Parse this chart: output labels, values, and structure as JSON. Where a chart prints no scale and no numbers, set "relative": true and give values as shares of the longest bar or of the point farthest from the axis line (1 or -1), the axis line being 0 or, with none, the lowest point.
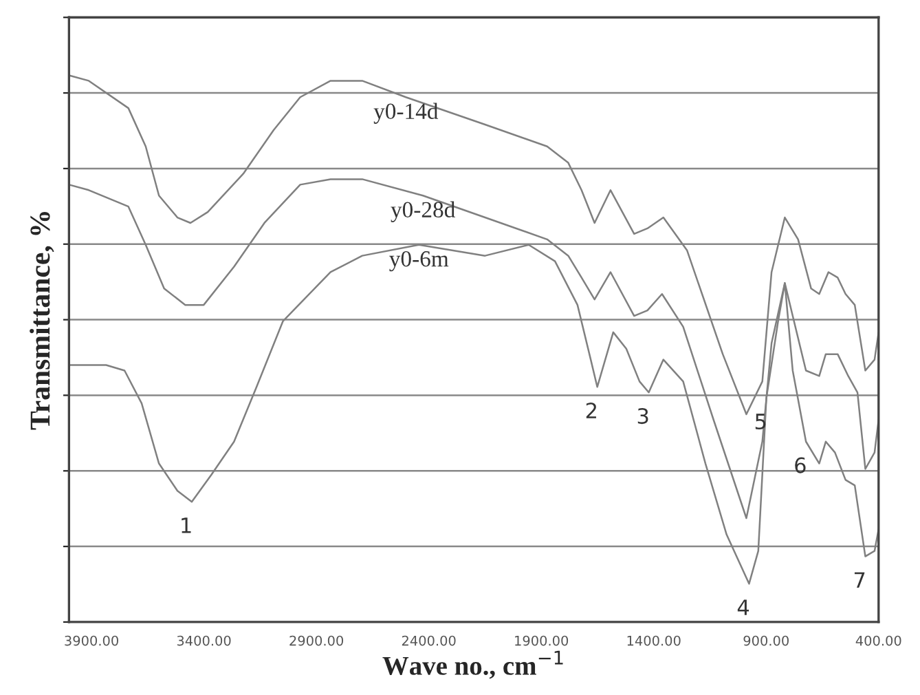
{
  "chart_data": {
    "type": "line",
    "relative": true,
    "xlabel": "Wave no., cm$^{−1}$",
    "ylabel": "Transmittance, %",
    "xlim": [
      4000,
      400
    ],
    "xticks": [
      {
        "value": 3900,
        "label": "3900.00"
      },
      {
        "value": 3400,
        "label": "3400.00"
      },
      {
        "value": 2900,
        "label": "2900.00"
      },
      {
        "value": 2400,
        "label": "2400.00"
      },
      {
        "value": 1900,
        "label": "1900.00"
      },
      {
        "value": 1400,
        "label": "1400.00"
      },
      {
        "value": 900,
        "label": "900.00"
      },
      {
        "value": 400,
        "label": "400.00"
      }
    ],
    "grid": "y",
    "tick_labels": "x",
    "series": [
      {
        "name": "y0-14d",
        "color": "#808080",
        "x": [
          4000,
          3912,
          3736,
          3659,
          3600,
          3518,
          3460,
          3383,
          3225,
          3090,
          2972,
          2837,
          2696,
          2502,
          2150,
          1874,
          1780,
          1721,
          1663,
          1592,
          1487,
          1428,
          1357,
          1252,
          1093,
          988,
          917,
          876,
          817,
          758,
          700,
          664,
          623,
          582,
          547,
          506,
          459,
          418,
          400
        ],
        "values": [
          1.0,
          0.99,
          0.94,
          0.87,
          0.78,
          0.74,
          0.73,
          0.75,
          0.82,
          0.9,
          0.96,
          0.99,
          0.99,
          0.96,
          0.91,
          0.87,
          0.84,
          0.79,
          0.73,
          0.79,
          0.71,
          0.72,
          0.74,
          0.68,
          0.49,
          0.38,
          0.44,
          0.64,
          0.74,
          0.7,
          0.61,
          0.6,
          0.64,
          0.63,
          0.6,
          0.58,
          0.46,
          0.48,
          0.53
        ]
      },
      {
        "name": "y0-28d",
        "color": "#808080",
        "x": [
          4000,
          3912,
          3736,
          3659,
          3577,
          3483,
          3401,
          3266,
          3131,
          2972,
          2837,
          2696,
          2426,
          2150,
          1874,
          1780,
          1721,
          1663,
          1592,
          1487,
          1428,
          1363,
          1269,
          1134,
          988,
          917,
          876,
          817,
          782,
          723,
          664,
          635,
          582,
          535,
          494,
          459,
          418,
          400
        ],
        "values": [
          0.8,
          0.79,
          0.76,
          0.69,
          0.61,
          0.58,
          0.58,
          0.65,
          0.73,
          0.8,
          0.81,
          0.81,
          0.78,
          0.74,
          0.7,
          0.67,
          0.63,
          0.59,
          0.64,
          0.56,
          0.57,
          0.6,
          0.54,
          0.37,
          0.19,
          0.33,
          0.51,
          0.62,
          0.56,
          0.46,
          0.45,
          0.49,
          0.49,
          0.45,
          0.42,
          0.28,
          0.31,
          0.37
        ]
      },
      {
        "name": "y0-6m",
        "color": "#808080",
        "x": [
          4000,
          3912,
          3835,
          3753,
          3677,
          3600,
          3518,
          3454,
          3366,
          3266,
          3166,
          3049,
          2955,
          2837,
          2696,
          2444,
          2150,
          1956,
          1839,
          1739,
          1680,
          1651,
          1580,
          1522,
          1463,
          1422,
          1357,
          1269,
          1170,
          1076,
          976,
          935,
          899,
          847,
          817,
          782,
          723,
          664,
          635,
          594,
          547,
          506,
          459,
          418,
          400
        ],
        "values": [
          0.47,
          0.47,
          0.47,
          0.46,
          0.4,
          0.29,
          0.24,
          0.22,
          0.27,
          0.33,
          0.43,
          0.55,
          0.59,
          0.64,
          0.67,
          0.69,
          0.67,
          0.69,
          0.66,
          0.58,
          0.48,
          0.43,
          0.53,
          0.5,
          0.44,
          0.42,
          0.48,
          0.44,
          0.29,
          0.16,
          0.07,
          0.13,
          0.41,
          0.55,
          0.62,
          0.46,
          0.33,
          0.29,
          0.33,
          0.31,
          0.26,
          0.25,
          0.12,
          0.13,
          0.17
        ]
      }
    ],
    "annotations": [
      {
        "text": "1",
        "x": 3454,
        "y": 0.22
      },
      {
        "text": "2",
        "x": 1651,
        "y": 0.43
      },
      {
        "text": "3",
        "x": 1422,
        "y": 0.42
      },
      {
        "text": "4",
        "x": 976,
        "y": 0.07
      },
      {
        "text": "5",
        "x": 899,
        "y": 0.41
      },
      {
        "text": "6",
        "x": 723,
        "y": 0.33
      },
      {
        "text": "7",
        "x": 459,
        "y": 0.12
      }
    ]
  }
}
